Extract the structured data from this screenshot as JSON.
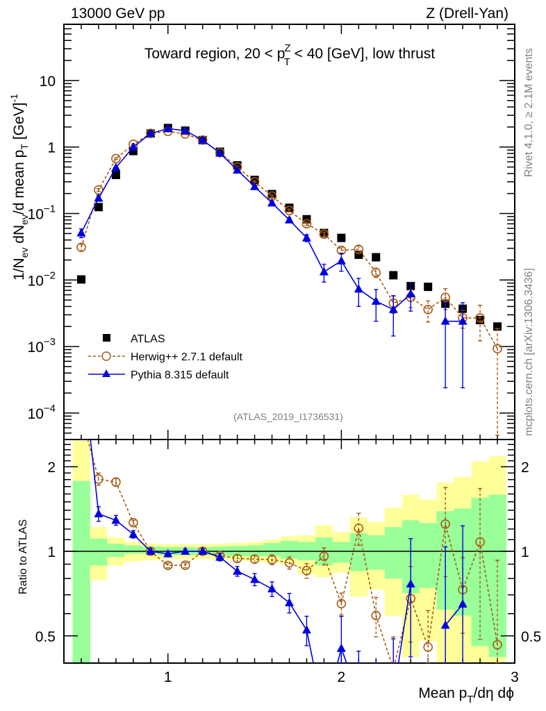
{
  "header": {
    "left": "13000 GeV pp",
    "right": "Z (Drell-Yan)"
  },
  "side_labels": {
    "rivet": "Rivet 4.1.0, ≥ 2.1M events",
    "mcplots": "mcplots.cern.ch [arXiv:1306.3436]"
  },
  "analysis_id": "(ATLAS_2019_I1736531)",
  "colors": {
    "atlas": "#000000",
    "herwig": "#a65a14",
    "pythia": "#0000e0",
    "band_total": "#ffff99",
    "band_stat": "#99ff99",
    "side_text": "#808080"
  },
  "chart_data": [
    {
      "name": "main",
      "type": "scatter",
      "title": "Toward region, 20 < p_T^Z < 40 [GeV], low thrust",
      "title_parts": {
        "pre": "Toward region, 20 < p",
        "sup": "Z",
        "sub": "T",
        "post": " < 40 [GeV], low thrust"
      },
      "ylabel": "1/N_ev dN_ev/d mean p_T [GeV]^-1",
      "ylabel_parts": {
        "a": "1/N",
        "a_sub": "ev",
        "b": " dN",
        "b_sub": "ev",
        "c": "/d mean p",
        "c_sub": "T",
        "d": " [GeV]",
        "d_sup": "-1"
      },
      "yscale": "log",
      "ylim": [
        4e-05,
        70
      ],
      "xlim": [
        0.4,
        3.0
      ],
      "yticks": [
        {
          "v": 0.0001,
          "base": "10",
          "exp": "−4"
        },
        {
          "v": 0.001,
          "base": "10",
          "exp": "−3"
        },
        {
          "v": 0.01,
          "base": "10",
          "exp": "−2"
        },
        {
          "v": 0.1,
          "base": "10",
          "exp": "−1"
        },
        {
          "v": 1,
          "base": "1",
          "exp": ""
        },
        {
          "v": 10,
          "base": "10",
          "exp": ""
        }
      ],
      "x": [
        0.5,
        0.6,
        0.7,
        0.8,
        0.9,
        1.0,
        1.1,
        1.2,
        1.3,
        1.4,
        1.5,
        1.6,
        1.7,
        1.8,
        1.9,
        2.0,
        2.1,
        2.2,
        2.3,
        2.4,
        2.5,
        2.6,
        2.7,
        2.8,
        2.9
      ],
      "legend": {
        "placement": "bottom-left",
        "entries": [
          "ATLAS",
          "Herwig++ 2.7.1 default",
          "Pythia 8.315 default"
        ]
      },
      "series": [
        {
          "name": "ATLAS",
          "marker": "square",
          "values": [
            0.0102,
            0.125,
            0.38,
            0.87,
            1.6,
            1.93,
            1.76,
            1.27,
            0.85,
            0.53,
            0.32,
            0.196,
            0.122,
            0.082,
            0.051,
            0.043,
            0.024,
            0.022,
            0.0118,
            0.0081,
            0.0079,
            0.0044,
            0.0037,
            0.0025,
            0.002
          ]
        },
        {
          "name": "Herwig++ 2.7.1 default",
          "marker": "open-circle",
          "line": "dashed",
          "values": [
            0.031,
            0.226,
            0.67,
            1.1,
            1.6,
            1.72,
            1.57,
            1.27,
            0.82,
            0.5,
            0.3,
            0.183,
            0.111,
            0.07,
            0.049,
            0.028,
            0.029,
            0.013,
            0.0045,
            0.0055,
            0.0036,
            0.0055,
            0.0027,
            0.0027,
            0.00093
          ],
          "rel_err": [
            0.12,
            0.05,
            0.03,
            0.02,
            0.02,
            0.02,
            0.02,
            0.02,
            0.02,
            0.03,
            0.03,
            0.04,
            0.05,
            0.06,
            0.07,
            0.09,
            0.13,
            0.16,
            0.3,
            0.3,
            0.35,
            0.35,
            0.3,
            0.55,
            1.0
          ]
        },
        {
          "name": "Pythia 8.315 default",
          "marker": "filled-triangle",
          "line": "solid",
          "values": [
            0.051,
            0.17,
            0.49,
            1.0,
            1.6,
            1.89,
            1.76,
            1.27,
            0.81,
            0.45,
            0.254,
            0.144,
            0.08,
            0.043,
            0.0133,
            0.0194,
            0.0073,
            0.0048,
            0.0036,
            0.0062,
            null,
            0.0024,
            0.0024,
            null,
            null
          ],
          "rel_err": [
            0.15,
            0.06,
            0.04,
            0.03,
            0.02,
            0.02,
            0.02,
            0.02,
            0.03,
            0.04,
            0.05,
            0.06,
            0.08,
            0.12,
            0.3,
            0.3,
            0.45,
            0.5,
            0.6,
            0.45,
            null,
            0.9,
            0.9,
            null,
            null
          ]
        }
      ]
    },
    {
      "name": "ratio",
      "type": "scatter",
      "ylabel": "Ratio to ATLAS",
      "xlabel": "Mean p_T/dη dϕ",
      "xlabel_parts": {
        "a": "Mean p",
        "a_sub": "T",
        "b": "/dη dϕ"
      },
      "yscale": "log",
      "ylim": [
        0.4,
        2.5
      ],
      "xlim": [
        0.4,
        3.0
      ],
      "xticks": [
        1,
        2,
        3
      ],
      "yticks": [
        0.5,
        1,
        2
      ],
      "reference_line": 1,
      "bins": [
        0.5,
        0.6,
        0.7,
        0.8,
        0.9,
        1.0,
        1.1,
        1.2,
        1.3,
        1.4,
        1.5,
        1.6,
        1.7,
        1.8,
        1.9,
        2.0,
        2.1,
        2.2,
        2.3,
        2.4,
        2.5,
        2.6,
        2.7,
        2.8,
        2.9
      ],
      "band_total_up": [
        3.0,
        1.22,
        1.12,
        1.08,
        1.065,
        1.06,
        1.06,
        1.06,
        1.065,
        1.07,
        1.08,
        1.1,
        1.13,
        1.14,
        1.24,
        1.17,
        1.32,
        1.27,
        1.43,
        1.59,
        1.53,
        1.76,
        1.84,
        2.09,
        2.18
      ],
      "band_total_down": [
        0.3,
        0.79,
        0.89,
        0.92,
        0.93,
        0.94,
        0.94,
        0.94,
        0.935,
        0.93,
        0.92,
        0.91,
        0.9,
        0.83,
        0.81,
        0.84,
        0.69,
        0.73,
        0.59,
        0.42,
        0.48,
        0.3,
        0.3,
        0.3,
        0.3
      ],
      "band_stat_up": [
        1.78,
        1.11,
        1.065,
        1.05,
        1.04,
        1.035,
        1.035,
        1.035,
        1.04,
        1.045,
        1.05,
        1.07,
        1.09,
        1.08,
        1.12,
        1.08,
        1.16,
        1.14,
        1.22,
        1.29,
        1.26,
        1.39,
        1.42,
        1.55,
        1.59
      ],
      "band_stat_down": [
        0.3,
        0.89,
        0.955,
        0.98,
        0.98,
        0.97,
        0.97,
        0.97,
        0.965,
        0.96,
        0.96,
        0.96,
        0.94,
        0.93,
        0.89,
        0.91,
        0.85,
        0.86,
        0.8,
        0.71,
        0.74,
        0.62,
        0.59,
        0.46,
        0.42
      ],
      "series": [
        "Herwig++ 2.7.1 default / ATLAS",
        "Pythia 8.315 default / ATLAS"
      ]
    }
  ]
}
